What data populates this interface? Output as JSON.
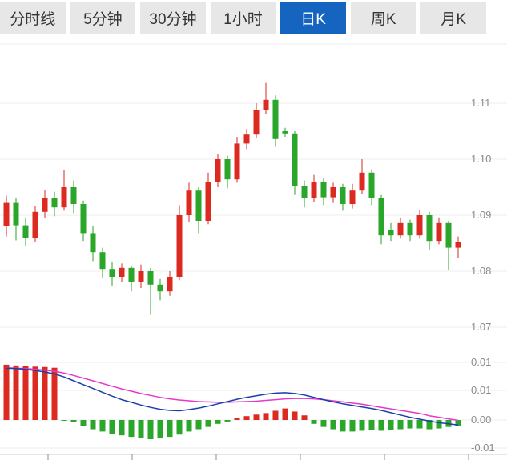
{
  "tabs": [
    {
      "label": "分时线",
      "active": false
    },
    {
      "label": "5分钟",
      "active": false
    },
    {
      "label": "30分钟",
      "active": false
    },
    {
      "label": "1小时",
      "active": false
    },
    {
      "label": "日K",
      "active": true
    },
    {
      "label": "周K",
      "active": false
    },
    {
      "label": "月K",
      "active": false
    }
  ],
  "colors": {
    "accent": "#1565c0",
    "tab_bg": "#e7e7e7",
    "tab_text": "#333333",
    "active_text": "#ffffff"
  },
  "chart_data": {
    "type": "candlestick",
    "title": "",
    "xlabel": "",
    "ylabel": "",
    "legend": "none",
    "grid": "horizontal",
    "price_axis": {
      "side": "right",
      "ticks": [
        {
          "label": "1.11",
          "value": 1.11
        },
        {
          "label": "1.10",
          "value": 1.1
        },
        {
          "label": "1.09",
          "value": 1.09
        },
        {
          "label": "1.08",
          "value": 1.08
        },
        {
          "label": "1.07",
          "value": 1.07
        }
      ]
    },
    "macd_axis": {
      "side": "right",
      "ticks": [
        {
          "label": "0.01",
          "value": 0.015
        },
        {
          "label": "0.01",
          "value": 0.0077
        },
        {
          "label": "0.00",
          "value": 0
        },
        {
          "label": "-0.01",
          "value": -0.0073
        }
      ]
    },
    "candles": [
      [
        1.088,
        1.0935,
        1.0862,
        1.0922
      ],
      [
        1.0922,
        1.093,
        1.0855,
        1.0882
      ],
      [
        1.0882,
        1.0896,
        1.0845,
        1.086
      ],
      [
        1.086,
        1.0916,
        1.0852,
        1.0906
      ],
      [
        1.0906,
        1.0945,
        1.0895,
        1.093
      ],
      [
        1.093,
        1.0942,
        1.0898,
        1.0914
      ],
      [
        1.0914,
        1.098,
        1.0908,
        1.095
      ],
      [
        1.095,
        1.0962,
        1.0904,
        1.092
      ],
      [
        1.092,
        1.0926,
        1.0854,
        1.0868
      ],
      [
        1.0868,
        1.088,
        1.0818,
        1.0834
      ],
      [
        1.0834,
        1.0842,
        1.0788,
        1.0804
      ],
      [
        1.0804,
        1.0816,
        1.0774,
        1.079
      ],
      [
        1.079,
        1.0814,
        1.078,
        1.0806
      ],
      [
        1.0806,
        1.081,
        1.0764,
        1.078
      ],
      [
        1.078,
        1.0812,
        1.077,
        1.08
      ],
      [
        1.08,
        1.0806,
        1.0722,
        1.0776
      ],
      [
        1.0776,
        1.0786,
        1.0748,
        1.0764
      ],
      [
        1.0764,
        1.08,
        1.0756,
        1.079
      ],
      [
        1.079,
        1.0918,
        1.0784,
        1.09
      ],
      [
        1.09,
        1.0958,
        1.0888,
        1.0944
      ],
      [
        1.0944,
        1.095,
        1.0868,
        1.089
      ],
      [
        1.089,
        1.0976,
        1.0884,
        1.096
      ],
      [
        1.096,
        1.101,
        1.095,
        1.1
      ],
      [
        1.1,
        1.1006,
        1.0948,
        1.0964
      ],
      [
        1.0964,
        1.104,
        1.0958,
        1.1028
      ],
      [
        1.1028,
        1.1054,
        1.1018,
        1.1044
      ],
      [
        1.1044,
        1.11,
        1.1038,
        1.1088
      ],
      [
        1.1088,
        1.1136,
        1.108,
        1.1106
      ],
      [
        1.1106,
        1.1114,
        1.1022,
        1.1036
      ],
      [
        1.105,
        1.1056,
        1.104,
        1.1046
      ],
      [
        1.1046,
        1.105,
        1.0936,
        1.0952
      ],
      [
        1.0952,
        1.0962,
        1.0914,
        1.093
      ],
      [
        1.093,
        1.0972,
        1.0924,
        1.096
      ],
      [
        1.096,
        1.0966,
        1.0918,
        1.0932
      ],
      [
        1.0932,
        1.0958,
        1.0922,
        1.095
      ],
      [
        1.095,
        1.0956,
        1.0908,
        1.092
      ],
      [
        1.092,
        1.0956,
        1.0912,
        1.0944
      ],
      [
        1.0944,
        1.1,
        1.0938,
        1.0976
      ],
      [
        1.0976,
        1.0982,
        1.0918,
        1.093
      ],
      [
        1.093,
        1.0936,
        1.0848,
        1.0864
      ],
      [
        1.0874,
        1.0886,
        1.0854,
        1.0864
      ],
      [
        1.0864,
        1.0896,
        1.0858,
        1.0886
      ],
      [
        1.0886,
        1.0892,
        1.0854,
        1.0864
      ],
      [
        1.0864,
        1.091,
        1.0858,
        1.09
      ],
      [
        1.09,
        1.0906,
        1.0838,
        1.0854
      ],
      [
        1.0854,
        1.0896,
        1.0848,
        1.0886
      ],
      [
        1.0886,
        1.089,
        1.0802,
        1.0842
      ],
      [
        1.0842,
        1.0862,
        1.0824,
        1.0852
      ]
    ],
    "macd": {
      "hist": [
        0.0144,
        0.0142,
        0.014,
        0.0139,
        0.0138,
        0.0136,
        -0.0002,
        -0.0006,
        -0.0015,
        -0.0024,
        -0.003,
        -0.0036,
        -0.004,
        -0.0044,
        -0.0046,
        -0.005,
        -0.0048,
        -0.0044,
        -0.0038,
        -0.003,
        -0.0024,
        -0.0018,
        -0.001,
        -0.0004,
        0.0006,
        0.001,
        0.0014,
        0.0018,
        0.0024,
        0.003,
        0.0022,
        0.0012,
        -0.001,
        -0.0018,
        -0.0024,
        -0.003,
        -0.003,
        -0.0028,
        -0.0026,
        -0.0028,
        -0.0026,
        -0.0024,
        -0.0022,
        -0.0022,
        -0.0024,
        -0.0022,
        -0.0018,
        -0.0016
      ],
      "dif": [
        0.0135,
        0.0134,
        0.0132,
        0.0129,
        0.0125,
        0.012,
        0.0112,
        0.0102,
        0.0092,
        0.0082,
        0.0072,
        0.0062,
        0.0053,
        0.0046,
        0.0039,
        0.0033,
        0.0028,
        0.0025,
        0.0024,
        0.0027,
        0.0031,
        0.0036,
        0.0042,
        0.0048,
        0.0054,
        0.0059,
        0.0063,
        0.0067,
        0.007,
        0.0071,
        0.0069,
        0.0065,
        0.0059,
        0.0053,
        0.0047,
        0.0042,
        0.0038,
        0.0034,
        0.003,
        0.0025,
        0.0019,
        0.0013,
        0.0007,
        0.0002,
        -0.0003,
        -0.0007,
        -0.001,
        -0.0013
      ],
      "dea": [
        0.0136,
        0.0135,
        0.0134,
        0.0132,
        0.013,
        0.0127,
        0.0122,
        0.0116,
        0.0109,
        0.0102,
        0.0095,
        0.0088,
        0.0081,
        0.0075,
        0.0069,
        0.0064,
        0.0059,
        0.0055,
        0.0052,
        0.005,
        0.0048,
        0.0047,
        0.0046,
        0.0046,
        0.0047,
        0.0048,
        0.0049,
        0.0051,
        0.0053,
        0.0055,
        0.0056,
        0.0056,
        0.0055,
        0.0053,
        0.005,
        0.0047,
        0.0044,
        0.0041,
        0.0037,
        0.0033,
        0.0029,
        0.0025,
        0.0021,
        0.0017,
        0.0011,
        0.0007,
        0.0003,
        -0.0001
      ]
    },
    "colors": {
      "up": "#dd2a20",
      "down": "#2aa62a",
      "dif": "#1b3faa",
      "dea": "#e639c8",
      "grid": "#ececec",
      "axis_text": "#8c8c8c",
      "axis_line": "#cccccc"
    }
  }
}
